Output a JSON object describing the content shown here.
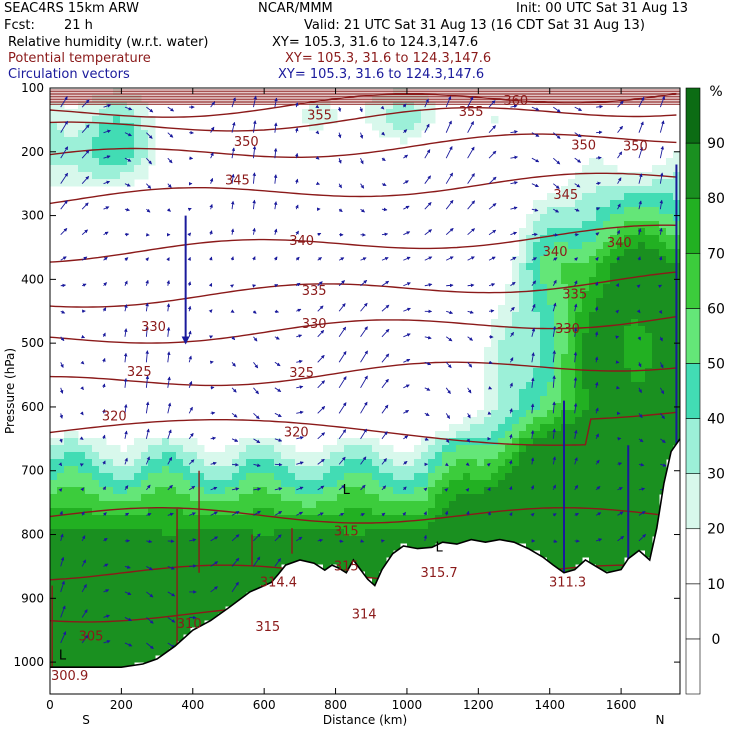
{
  "header": {
    "model": "SEAC4RS 15km ARW",
    "org": "NCAR/MMM",
    "init": "Init: 00 UTC Sat 31 Aug 13",
    "fcst_label": "Fcst:",
    "fcst_value": "21 h",
    "valid": "Valid: 21 UTC Sat 31 Aug 13 (16 CDT Sat 31 Aug 13)",
    "fields": [
      {
        "name": "Relative humidity (w.r.t. water)",
        "xy": "XY= 105.3, 31.6 to 124.3,147.6",
        "color": "#000000"
      },
      {
        "name": "Potential temperature",
        "xy": "XY= 105.3, 31.6 to 124.3,147.6",
        "color": "#8b1a1a"
      },
      {
        "name": "Circulation vectors",
        "xy": "XY= 105.3, 31.6 to 124.3,147.6",
        "color": "#1a1a9c"
      }
    ]
  },
  "chart_data": {
    "type": "heatmap",
    "xlabel": "Distance (km)",
    "ylabel": "Pressure (hPa)",
    "xlim": [
      0,
      1765
    ],
    "ylim": [
      1050,
      100
    ],
    "x_ticks": [
      0,
      200,
      400,
      600,
      800,
      1000,
      1200,
      1400,
      1600
    ],
    "y_ticks": [
      100,
      200,
      300,
      400,
      500,
      600,
      700,
      800,
      900,
      1000
    ],
    "x_end_labels": {
      "left": "S",
      "right": "N"
    },
    "colorbar": {
      "unit": "%",
      "levels": [
        0,
        10,
        20,
        30,
        40,
        50,
        60,
        70,
        80,
        90,
        100
      ],
      "tick_labels": [
        "0",
        "10",
        "20",
        "30",
        "40",
        "50",
        "60",
        "70",
        "80",
        "90"
      ],
      "colors": [
        "#ffffff",
        "#ffffff",
        "#ffffff",
        "#d8f8ec",
        "#9cf0d8",
        "#42dcb4",
        "#64e678",
        "#3ccc3c",
        "#22b022",
        "#1a9020",
        "#0c6c14"
      ]
    },
    "terrain_pressure": [
      [
        0,
        1008
      ],
      [
        120,
        1008
      ],
      [
        200,
        1008
      ],
      [
        260,
        1003
      ],
      [
        300,
        995
      ],
      [
        350,
        975
      ],
      [
        400,
        950
      ],
      [
        450,
        935
      ],
      [
        500,
        915
      ],
      [
        560,
        890
      ],
      [
        600,
        880
      ],
      [
        620,
        875
      ],
      [
        640,
        862
      ],
      [
        660,
        848
      ],
      [
        700,
        840
      ],
      [
        740,
        845
      ],
      [
        770,
        856
      ],
      [
        790,
        848
      ],
      [
        810,
        853
      ],
      [
        830,
        860
      ],
      [
        850,
        840
      ],
      [
        870,
        855
      ],
      [
        890,
        870
      ],
      [
        910,
        880
      ],
      [
        930,
        855
      ],
      [
        960,
        830
      ],
      [
        990,
        818
      ],
      [
        1030,
        822
      ],
      [
        1070,
        820
      ],
      [
        1100,
        812
      ],
      [
        1140,
        815
      ],
      [
        1180,
        808
      ],
      [
        1220,
        812
      ],
      [
        1260,
        808
      ],
      [
        1300,
        812
      ],
      [
        1340,
        822
      ],
      [
        1380,
        835
      ],
      [
        1410,
        848
      ],
      [
        1440,
        860
      ],
      [
        1470,
        855
      ],
      [
        1500,
        840
      ],
      [
        1530,
        850
      ],
      [
        1560,
        860
      ],
      [
        1600,
        855
      ],
      [
        1620,
        838
      ],
      [
        1650,
        825
      ],
      [
        1680,
        840
      ],
      [
        1700,
        790
      ],
      [
        1720,
        720
      ],
      [
        1740,
        670
      ],
      [
        1765,
        650
      ]
    ],
    "theta_labels": [
      {
        "value": "360",
        "x": 1305,
        "p": 120
      },
      {
        "value": "355",
        "x": 755,
        "p": 143
      },
      {
        "value": "355",
        "x": 1180,
        "p": 138
      },
      {
        "value": "350",
        "x": 550,
        "p": 185
      },
      {
        "value": "350",
        "x": 1495,
        "p": 190
      },
      {
        "value": "350",
        "x": 1640,
        "p": 192
      },
      {
        "value": "345",
        "x": 525,
        "p": 245
      },
      {
        "value": "345",
        "x": 1445,
        "p": 268
      },
      {
        "value": "340",
        "x": 705,
        "p": 340
      },
      {
        "value": "340",
        "x": 1415,
        "p": 357
      },
      {
        "value": "340",
        "x": 1595,
        "p": 343
      },
      {
        "value": "335",
        "x": 740,
        "p": 418
      },
      {
        "value": "335",
        "x": 1470,
        "p": 424
      },
      {
        "value": "330",
        "x": 290,
        "p": 475
      },
      {
        "value": "330",
        "x": 740,
        "p": 470
      },
      {
        "value": "330",
        "x": 1450,
        "p": 478
      },
      {
        "value": "325",
        "x": 250,
        "p": 545
      },
      {
        "value": "325",
        "x": 705,
        "p": 547
      },
      {
        "value": "320",
        "x": 180,
        "p": 615
      },
      {
        "value": "320",
        "x": 690,
        "p": 640
      },
      {
        "value": "315",
        "x": 830,
        "p": 795
      },
      {
        "value": "315",
        "x": 830,
        "p": 850
      },
      {
        "value": "315.7",
        "x": 1090,
        "p": 860
      },
      {
        "value": "314.4",
        "x": 640,
        "p": 875
      },
      {
        "value": "314",
        "x": 880,
        "p": 925
      },
      {
        "value": "315",
        "x": 610,
        "p": 945
      },
      {
        "value": "311.3",
        "x": 1450,
        "p": 875
      },
      {
        "value": "310",
        "x": 390,
        "p": 940
      },
      {
        "value": "305",
        "x": 115,
        "p": 960
      },
      {
        "value": "300.9",
        "x": 55,
        "p": 1022
      }
    ],
    "low_markers": [
      {
        "value": "L",
        "x": 830,
        "p": 730
      },
      {
        "value": "L",
        "x": 1090,
        "p": 820
      },
      {
        "value": "L",
        "x": 35,
        "p": 990
      }
    ]
  }
}
